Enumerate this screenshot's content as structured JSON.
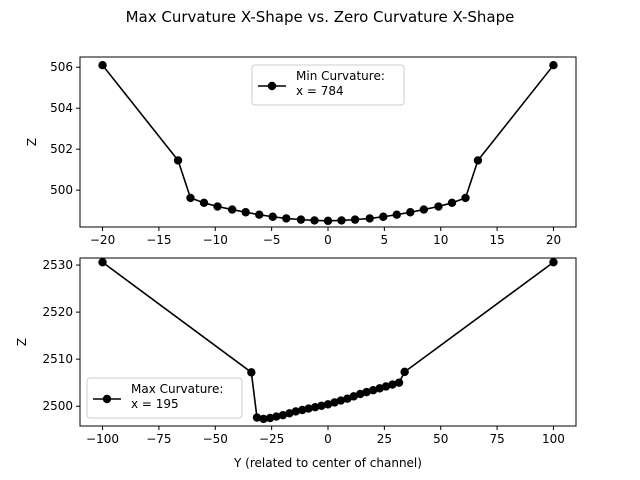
{
  "figure": {
    "suptitle": "Max Curvature X-Shape vs. Zero Curvature X-Shape"
  },
  "chart_data": [
    {
      "type": "line",
      "title": "",
      "xlabel": "",
      "ylabel": "Z",
      "xlim": [
        -22,
        22
      ],
      "ylim": [
        498.2,
        506.5
      ],
      "xticks": [
        -20,
        -15,
        -10,
        -5,
        0,
        5,
        10,
        15,
        20
      ],
      "xtick_labels": [
        "−20",
        "−15",
        "−10",
        "−5",
        "0",
        "5",
        "10",
        "15",
        "20"
      ],
      "yticks": [
        500,
        502,
        504,
        506
      ],
      "ytick_labels": [
        "500",
        "502",
        "504",
        "506"
      ],
      "grid": false,
      "legend_position": "upper-center",
      "series": [
        {
          "name": "Min Curvature:\nx = 784",
          "color": "#000000",
          "marker": "circle",
          "x": [
            -20,
            -13.3,
            -12.2,
            -11,
            -9.8,
            -8.5,
            -7.3,
            -6.1,
            -4.9,
            -3.7,
            -2.4,
            -1.2,
            0,
            1.2,
            2.4,
            3.7,
            4.9,
            6.1,
            7.3,
            8.5,
            9.8,
            11,
            12.2,
            13.3,
            20
          ],
          "y": [
            506.1,
            501.45,
            499.62,
            499.38,
            499.2,
            499.05,
            498.92,
            498.8,
            498.7,
            498.62,
            498.56,
            498.52,
            498.5,
            498.52,
            498.56,
            498.62,
            498.7,
            498.8,
            498.92,
            499.05,
            499.2,
            499.38,
            499.62,
            501.45,
            506.1
          ]
        }
      ]
    },
    {
      "type": "line",
      "title": "",
      "xlabel": "Y (related to center of channel)",
      "ylabel": "Z",
      "xlim": [
        -110,
        110
      ],
      "ylim": [
        2495.8,
        2531.5
      ],
      "xticks": [
        -100,
        -75,
        -50,
        -25,
        0,
        25,
        50,
        75,
        100
      ],
      "xtick_labels": [
        "−100",
        "−75",
        "−50",
        "−25",
        "0",
        "25",
        "50",
        "75",
        "100"
      ],
      "yticks": [
        2500,
        2510,
        2520,
        2530
      ],
      "ytick_labels": [
        "2500",
        "2510",
        "2520",
        "2530"
      ],
      "grid": false,
      "legend_position": "lower-left",
      "series": [
        {
          "name": "Max Curvature:\nx = 195",
          "color": "#000000",
          "marker": "circle",
          "x": [
            -100,
            -34,
            -31.5,
            -28.6,
            -25.7,
            -22.9,
            -20,
            -17.1,
            -14.3,
            -11.4,
            -8.6,
            -5.7,
            -2.9,
            0,
            2.9,
            5.7,
            8.6,
            11.4,
            14.3,
            17.1,
            20,
            22.9,
            25.7,
            28.6,
            31.5,
            34,
            100
          ],
          "y": [
            2530.6,
            2507.2,
            2497.6,
            2497.3,
            2497.5,
            2497.8,
            2498.1,
            2498.5,
            2498.9,
            2499.2,
            2499.5,
            2499.8,
            2500.1,
            2500.4,
            2500.8,
            2501.2,
            2501.6,
            2502.1,
            2502.6,
            2503.0,
            2503.4,
            2503.8,
            2504.2,
            2504.6,
            2505.0,
            2507.3,
            2530.6
          ]
        }
      ]
    }
  ]
}
